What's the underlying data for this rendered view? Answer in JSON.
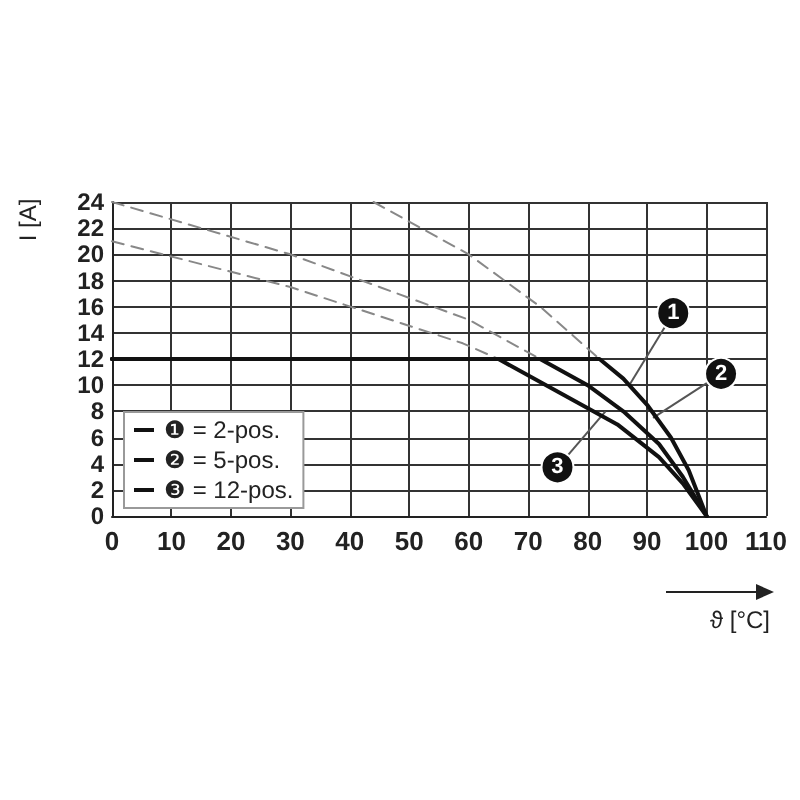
{
  "chart_data": {
    "type": "line",
    "xlabel": "ϑ [°C]",
    "ylabel": "I [A]",
    "xlim": [
      0,
      110
    ],
    "xticks": [
      0,
      10,
      20,
      30,
      40,
      50,
      60,
      70,
      80,
      90,
      100,
      110
    ],
    "ylim": [
      0,
      24
    ],
    "yticks": [
      0,
      2,
      4,
      6,
      8,
      10,
      12,
      14,
      16,
      18,
      20,
      22,
      24
    ],
    "grid": true,
    "legend": "bottom left",
    "marker": "none",
    "series": [
      {
        "name": "❶ = 2-pos.",
        "color": "#111111",
        "x": [
          0,
          82,
          86,
          90,
          94,
          97,
          100
        ],
        "values": [
          12,
          12,
          10.5,
          8.5,
          6,
          3.5,
          0
        ]
      },
      {
        "name": "❷ = 5-pos.",
        "color": "#111111",
        "x": [
          0,
          72,
          80,
          86,
          92,
          96,
          100
        ],
        "values": [
          12,
          12,
          10,
          8,
          5.5,
          3,
          0
        ]
      },
      {
        "name": "❸ = 12-pos.",
        "color": "#111111",
        "x": [
          0,
          65,
          75,
          85,
          92,
          96,
          100
        ],
        "values": [
          12,
          12,
          9.5,
          7,
          4.5,
          2.5,
          0
        ]
      },
      {
        "color": "#888888",
        "line_style": "dashed",
        "x": [
          44,
          60,
          72,
          82
        ],
        "values": [
          24,
          20,
          16,
          12
        ]
      },
      {
        "color": "#888888",
        "line_style": "dashed",
        "x": [
          0,
          30,
          60,
          72
        ],
        "values": [
          24,
          20,
          15,
          12
        ]
      },
      {
        "color": "#888888",
        "line_style": "dashed",
        "x": [
          0,
          30,
          59,
          65
        ],
        "values": [
          21,
          17.5,
          13.2,
          12
        ]
      }
    ],
    "annotations": [
      {
        "text": "1",
        "x": 87,
        "y": 10
      },
      {
        "text": "2",
        "x": 91,
        "y": 7.5
      },
      {
        "text": "3",
        "x": 83,
        "y": 8
      }
    ]
  }
}
